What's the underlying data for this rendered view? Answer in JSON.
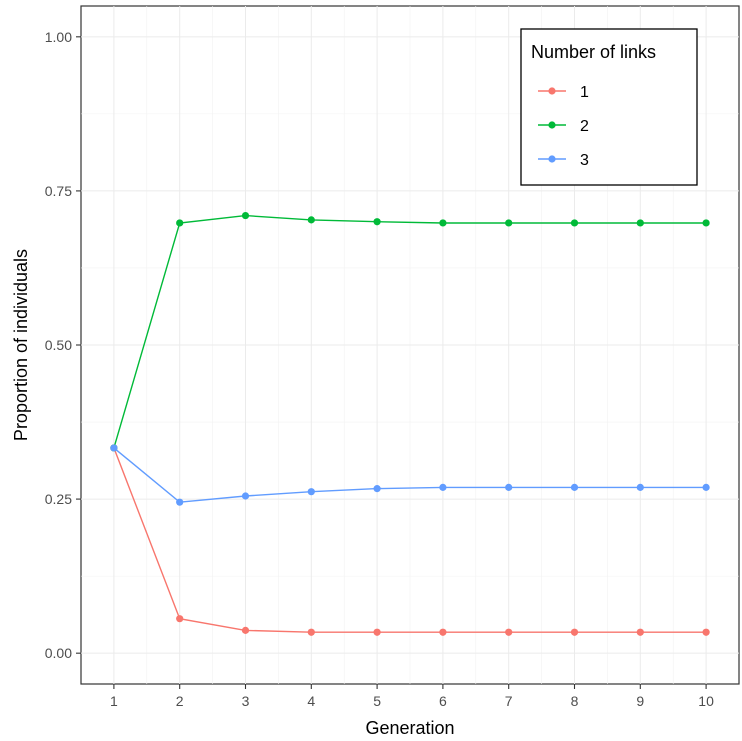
{
  "chart_data": {
    "type": "line",
    "xlabel": "Generation",
    "ylabel": "Proportion of individuals",
    "x": [
      1,
      2,
      3,
      4,
      5,
      6,
      7,
      8,
      9,
      10
    ],
    "xlim": [
      0.5,
      10.5
    ],
    "ylim": [
      -0.05,
      1.05
    ],
    "x_ticks": [
      "1",
      "2",
      "3",
      "4",
      "5",
      "6",
      "7",
      "8",
      "9",
      "10"
    ],
    "y_ticks": [
      {
        "value": 0.0,
        "label": "0.00"
      },
      {
        "value": 0.25,
        "label": "0.25"
      },
      {
        "value": 0.5,
        "label": "0.50"
      },
      {
        "value": 0.75,
        "label": "0.75"
      },
      {
        "value": 1.0,
        "label": "1.00"
      }
    ],
    "grid": true,
    "legend": {
      "title": "Number of links",
      "placement": "top-right"
    },
    "series": [
      {
        "name": "1",
        "color": "#F8766D",
        "values": [
          0.333,
          0.056,
          0.037,
          0.034,
          0.034,
          0.034,
          0.034,
          0.034,
          0.034,
          0.034
        ]
      },
      {
        "name": "2",
        "color": "#00BA38",
        "values": [
          0.333,
          0.698,
          0.71,
          0.703,
          0.7,
          0.698,
          0.698,
          0.698,
          0.698,
          0.698
        ]
      },
      {
        "name": "3",
        "color": "#619CFF",
        "values": [
          0.333,
          0.245,
          0.255,
          0.262,
          0.267,
          0.269,
          0.269,
          0.269,
          0.269,
          0.269
        ]
      }
    ]
  }
}
